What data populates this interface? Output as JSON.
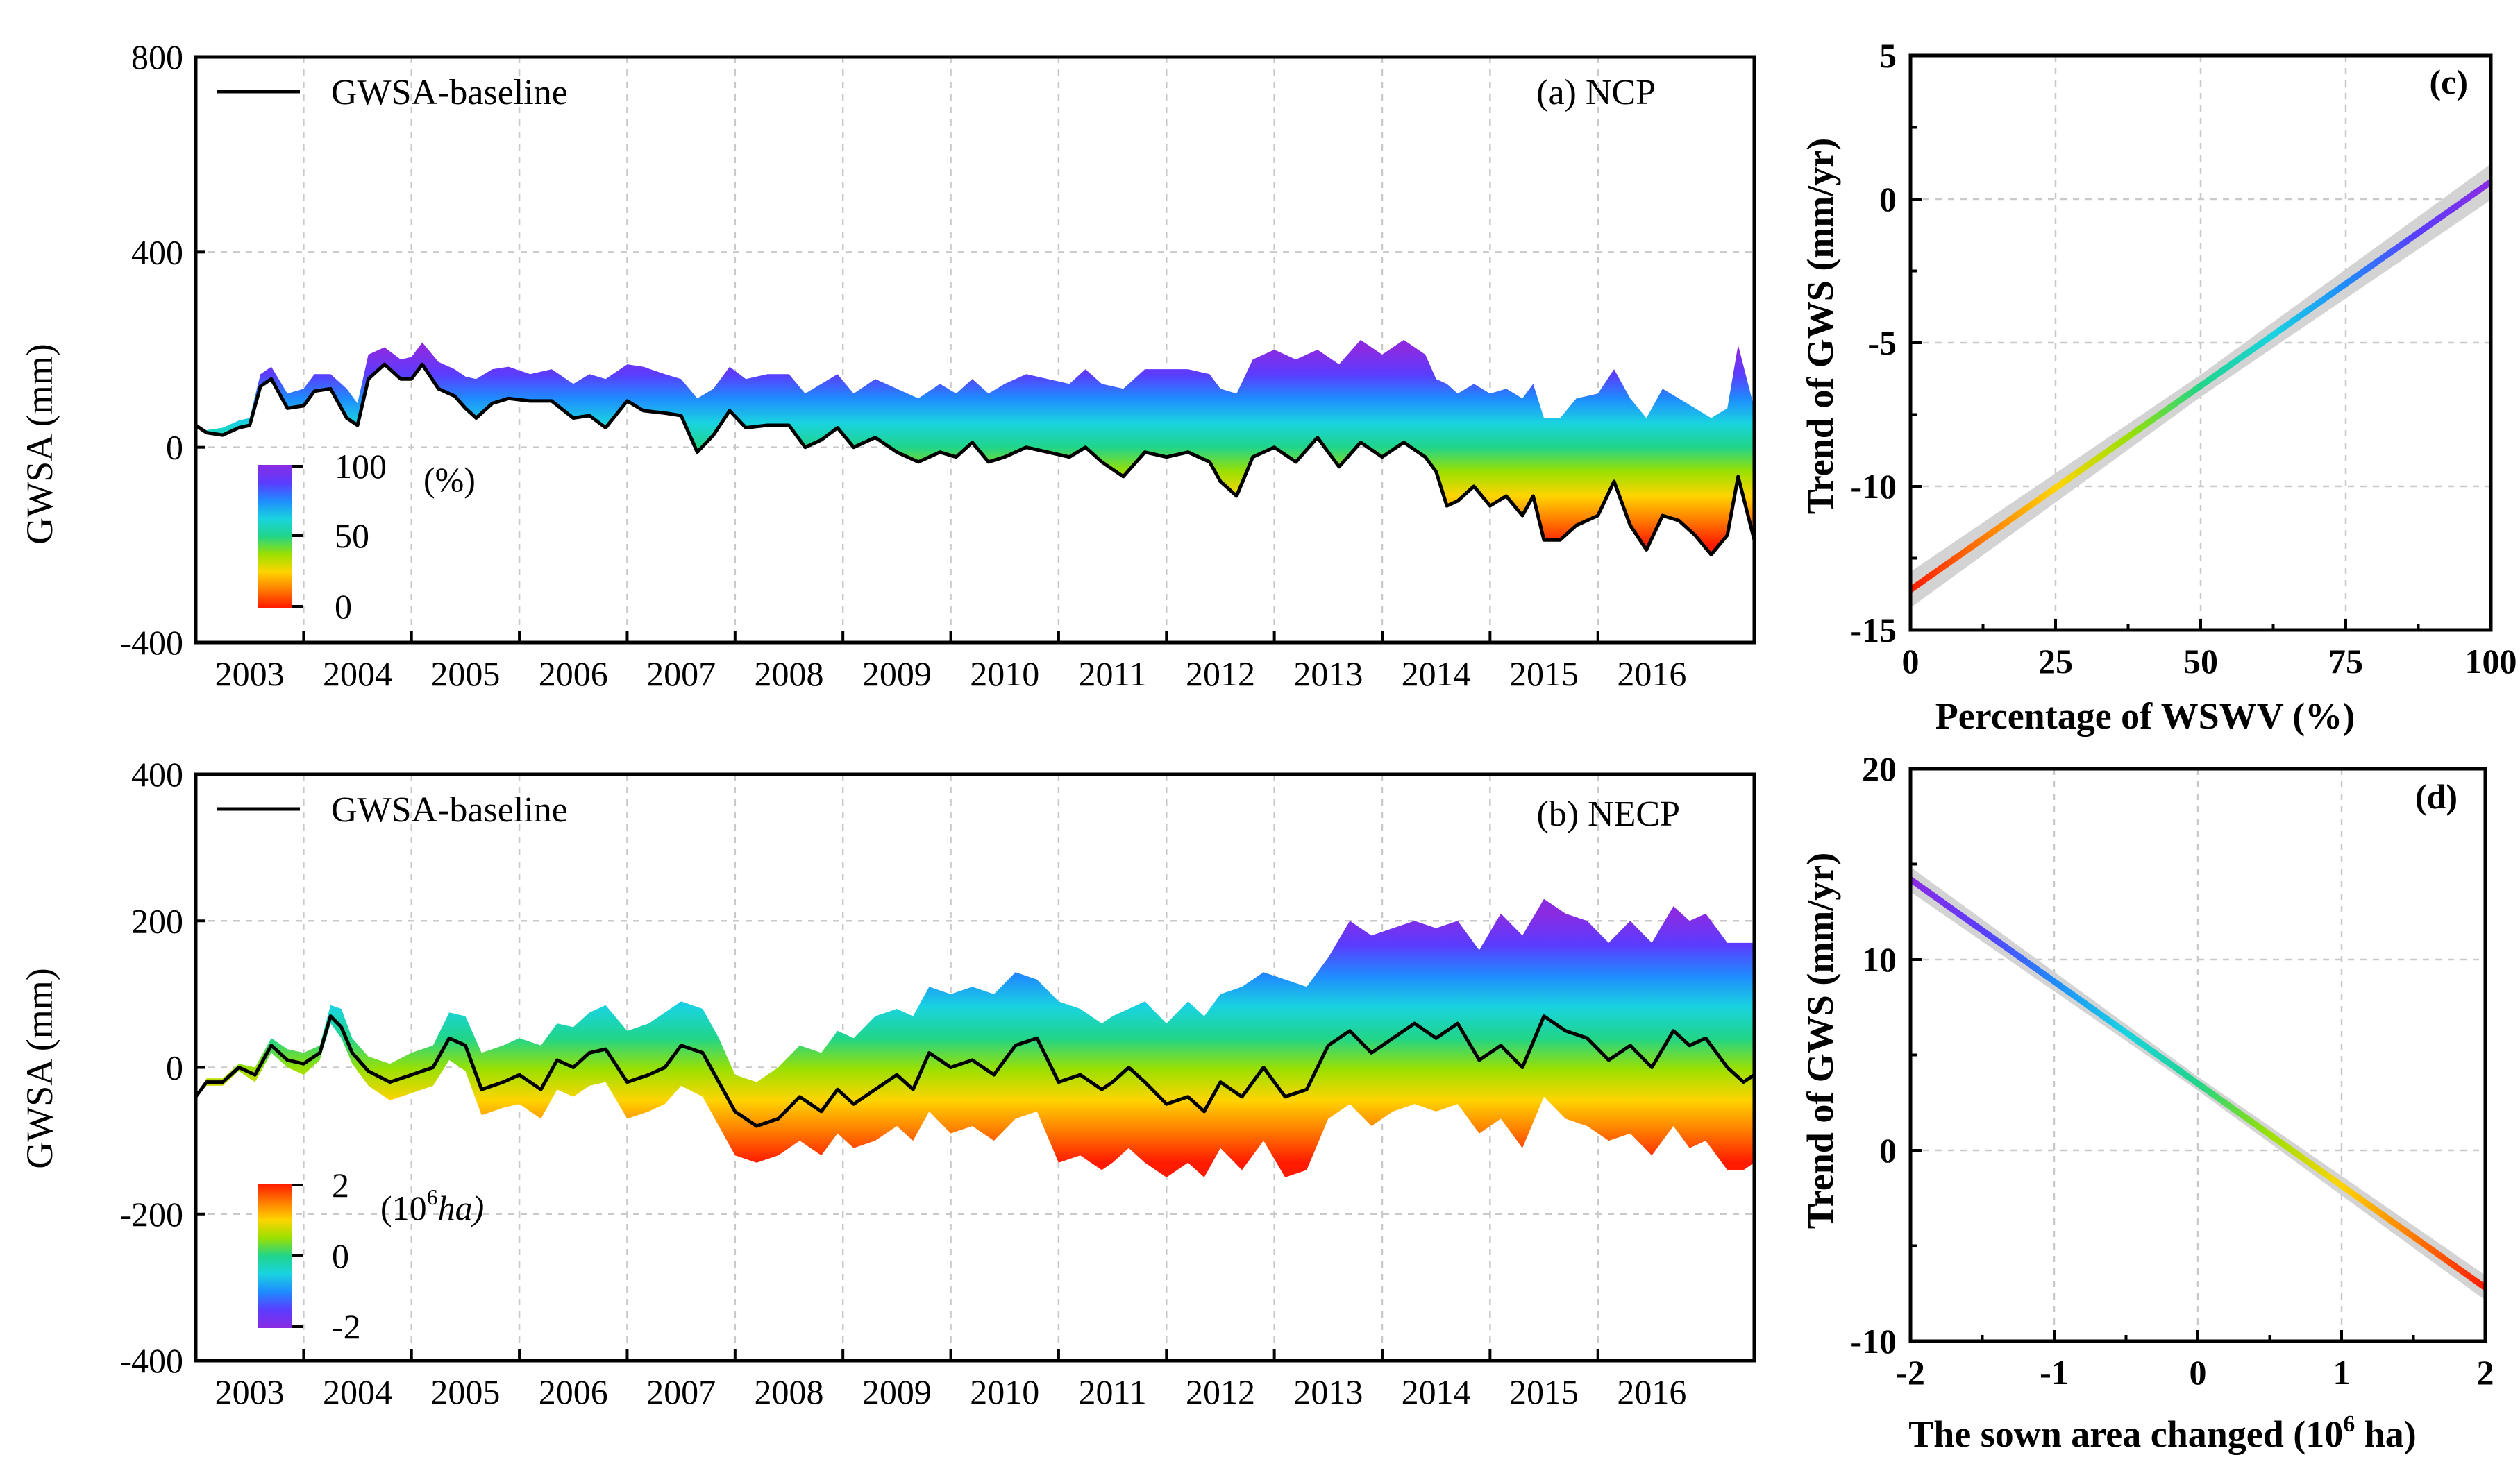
{
  "colors": {
    "baseline": "#000000",
    "band": "#d3d3d3",
    "rainbow": [
      "#ff1a00",
      "#ff7a00",
      "#ffd400",
      "#9be000",
      "#20d58a",
      "#19d3e0",
      "#1f8bff",
      "#5b3cff",
      "#8a2be2"
    ]
  },
  "chart_data": [
    {
      "id": "a",
      "type": "area",
      "panel_label": "(a) NCP",
      "ylabel": "GWSA (mm)",
      "xlabel": "",
      "yticks": [
        "800",
        "400",
        "0",
        "-400"
      ],
      "ylim": [
        -400,
        800
      ],
      "xlim": [
        2002.5,
        2016.95
      ],
      "x_tick_labels": [
        "2003",
        "2004",
        "2005",
        "2006",
        "2007",
        "2008",
        "2009",
        "2010",
        "2011",
        "2012",
        "2013",
        "2014",
        "2015",
        "2016"
      ],
      "legend": {
        "line_label": "GWSA-baseline",
        "placement": "top-left"
      },
      "colorbar": {
        "labels": [
          "100",
          "50",
          "0"
        ],
        "unit": "(%)",
        "direction": "bottom red (0) to top violet (100)"
      },
      "grid": true,
      "series": [
        {
          "name": "GWSA-baseline",
          "x": [
            2002.5,
            2002.6,
            2002.75,
            2002.9,
            2003.0,
            2003.1,
            2003.2,
            2003.35,
            2003.5,
            2003.6,
            2003.75,
            2003.9,
            2004.0,
            2004.1,
            2004.25,
            2004.4,
            2004.5,
            2004.6,
            2004.75,
            2004.9,
            2005.0,
            2005.1,
            2005.25,
            2005.4,
            2005.6,
            2005.8,
            2006.0,
            2006.15,
            2006.3,
            2006.5,
            2006.65,
            2006.85,
            2007.0,
            2007.15,
            2007.3,
            2007.45,
            2007.6,
            2007.8,
            2008.0,
            2008.15,
            2008.3,
            2008.45,
            2008.6,
            2008.8,
            2009.0,
            2009.2,
            2009.4,
            2009.55,
            2009.7,
            2009.85,
            2010.0,
            2010.2,
            2010.4,
            2010.6,
            2010.75,
            2010.9,
            2011.1,
            2011.3,
            2011.5,
            2011.7,
            2011.9,
            2012.0,
            2012.15,
            2012.3,
            2012.5,
            2012.7,
            2012.9,
            2013.1,
            2013.3,
            2013.5,
            2013.7,
            2013.9,
            2014.0,
            2014.1,
            2014.2,
            2014.35,
            2014.5,
            2014.65,
            2014.8,
            2014.9,
            2015.0,
            2015.15,
            2015.3,
            2015.5,
            2015.65,
            2015.8,
            2015.95,
            2016.1,
            2016.25,
            2016.4,
            2016.55,
            2016.7,
            2016.8,
            2016.95
          ],
          "y": [
            45,
            30,
            25,
            40,
            45,
            125,
            140,
            80,
            85,
            115,
            120,
            60,
            45,
            140,
            170,
            140,
            140,
            170,
            120,
            105,
            80,
            60,
            90,
            100,
            95,
            95,
            60,
            65,
            40,
            95,
            75,
            70,
            65,
            -10,
            25,
            75,
            40,
            45,
            45,
            0,
            15,
            40,
            0,
            20,
            -10,
            -30,
            -10,
            -20,
            10,
            -30,
            -20,
            0,
            -10,
            -20,
            0,
            -30,
            -60,
            -10,
            -20,
            -10,
            -30,
            -70,
            -100,
            -20,
            0,
            -30,
            20,
            -40,
            10,
            -20,
            10,
            -20,
            -50,
            -120,
            -110,
            -80,
            -120,
            -100,
            -140,
            -100,
            -190,
            -190,
            -160,
            -140,
            -70,
            -160,
            -210,
            -140,
            -150,
            -180,
            -220,
            -180,
            -60,
            -190
          ]
        }
      ],
      "band_upper": {
        "x": [
          2002.5,
          2002.6,
          2002.75,
          2002.9,
          2003.0,
          2003.1,
          2003.2,
          2003.35,
          2003.5,
          2003.6,
          2003.75,
          2003.9,
          2004.0,
          2004.1,
          2004.25,
          2004.4,
          2004.5,
          2004.6,
          2004.75,
          2004.9,
          2005.0,
          2005.1,
          2005.25,
          2005.4,
          2005.6,
          2005.8,
          2006.0,
          2006.15,
          2006.3,
          2006.5,
          2006.65,
          2006.85,
          2007.0,
          2007.15,
          2007.3,
          2007.45,
          2007.6,
          2007.8,
          2008.0,
          2008.15,
          2008.3,
          2008.45,
          2008.6,
          2008.8,
          2009.0,
          2009.2,
          2009.4,
          2009.55,
          2009.7,
          2009.85,
          2010.0,
          2010.2,
          2010.4,
          2010.6,
          2010.75,
          2010.9,
          2011.1,
          2011.3,
          2011.5,
          2011.7,
          2011.9,
          2012.0,
          2012.15,
          2012.3,
          2012.5,
          2012.7,
          2012.9,
          2013.1,
          2013.3,
          2013.5,
          2013.7,
          2013.9,
          2014.0,
          2014.1,
          2014.2,
          2014.35,
          2014.5,
          2014.65,
          2014.8,
          2014.9,
          2015.0,
          2015.15,
          2015.3,
          2015.5,
          2015.65,
          2015.8,
          2015.95,
          2016.1,
          2016.25,
          2016.4,
          2016.55,
          2016.7,
          2016.8,
          2016.95
        ],
        "y": [
          45,
          35,
          40,
          55,
          60,
          150,
          165,
          110,
          120,
          150,
          150,
          120,
          90,
          190,
          205,
          180,
          185,
          215,
          175,
          160,
          145,
          140,
          160,
          165,
          150,
          160,
          130,
          150,
          140,
          170,
          165,
          150,
          140,
          100,
          120,
          165,
          140,
          150,
          150,
          110,
          130,
          150,
          110,
          140,
          120,
          100,
          130,
          110,
          140,
          110,
          130,
          150,
          140,
          130,
          160,
          130,
          120,
          160,
          160,
          160,
          150,
          120,
          110,
          180,
          200,
          180,
          200,
          170,
          220,
          190,
          220,
          190,
          140,
          130,
          110,
          130,
          110,
          120,
          100,
          130,
          60,
          60,
          100,
          110,
          160,
          100,
          60,
          120,
          100,
          80,
          60,
          80,
          210,
          80
        ]
      }
    },
    {
      "id": "b",
      "type": "area",
      "panel_label": "(b) NECP",
      "ylabel": "GWSA (mm)",
      "xlabel": "",
      "yticks": [
        "400",
        "200",
        "0",
        "-200",
        "-400"
      ],
      "ylim": [
        -400,
        400
      ],
      "xlim": [
        2002.5,
        2016.95
      ],
      "x_tick_labels": [
        "2003",
        "2004",
        "2005",
        "2006",
        "2007",
        "2008",
        "2009",
        "2010",
        "2011",
        "2012",
        "2013",
        "2014",
        "2015",
        "2016"
      ],
      "legend": {
        "line_label": "GWSA-baseline",
        "placement": "top-left"
      },
      "colorbar": {
        "labels": [
          "2",
          "0",
          "-2"
        ],
        "unit_base": "(10",
        "unit_sup": "6",
        "unit_rest": "ha)",
        "direction": "top red (2) to bottom violet (-2)"
      },
      "grid": true,
      "series": [
        {
          "name": "GWSA-baseline",
          "x": [
            2002.5,
            2002.6,
            2002.75,
            2002.9,
            2003.05,
            2003.2,
            2003.35,
            2003.5,
            2003.65,
            2003.75,
            2003.85,
            2003.95,
            2004.1,
            2004.3,
            2004.5,
            2004.7,
            2004.85,
            2005.0,
            2005.15,
            2005.35,
            2005.5,
            2005.7,
            2005.85,
            2006.0,
            2006.15,
            2006.3,
            2006.5,
            2006.7,
            2006.85,
            2007.0,
            2007.2,
            2007.35,
            2007.5,
            2007.7,
            2007.9,
            2008.1,
            2008.3,
            2008.45,
            2008.6,
            2008.8,
            2009.0,
            2009.15,
            2009.3,
            2009.5,
            2009.7,
            2009.9,
            2010.1,
            2010.3,
            2010.5,
            2010.7,
            2010.9,
            2011.0,
            2011.15,
            2011.3,
            2011.5,
            2011.7,
            2011.85,
            2012.0,
            2012.2,
            2012.4,
            2012.6,
            2012.8,
            2013.0,
            2013.2,
            2013.4,
            2013.6,
            2013.8,
            2014.0,
            2014.2,
            2014.4,
            2014.6,
            2014.8,
            2015.0,
            2015.2,
            2015.4,
            2015.6,
            2015.8,
            2016.0,
            2016.2,
            2016.35,
            2016.5,
            2016.7,
            2016.85,
            2016.95
          ],
          "y": [
            -40,
            -20,
            -20,
            0,
            -10,
            30,
            10,
            5,
            20,
            70,
            55,
            20,
            -5,
            -20,
            -10,
            0,
            40,
            30,
            -30,
            -20,
            -10,
            -30,
            10,
            0,
            20,
            25,
            -20,
            -10,
            0,
            30,
            20,
            -20,
            -60,
            -80,
            -70,
            -40,
            -60,
            -30,
            -50,
            -30,
            -10,
            -30,
            20,
            0,
            10,
            -10,
            30,
            40,
            -20,
            -10,
            -30,
            -20,
            0,
            -20,
            -50,
            -40,
            -60,
            -20,
            -40,
            0,
            -40,
            -30,
            30,
            50,
            20,
            40,
            60,
            40,
            60,
            10,
            30,
            0,
            70,
            50,
            40,
            10,
            30,
            0,
            50,
            30,
            40,
            0,
            -20,
            -10
          ]
        }
      ],
      "band_upper": {
        "x": [
          2002.5,
          2002.6,
          2002.75,
          2002.9,
          2003.05,
          2003.2,
          2003.35,
          2003.5,
          2003.65,
          2003.75,
          2003.85,
          2003.95,
          2004.1,
          2004.3,
          2004.5,
          2004.7,
          2004.85,
          2005.0,
          2005.15,
          2005.35,
          2005.5,
          2005.7,
          2005.85,
          2006.0,
          2006.15,
          2006.3,
          2006.5,
          2006.7,
          2006.85,
          2007.0,
          2007.2,
          2007.35,
          2007.5,
          2007.7,
          2007.9,
          2008.1,
          2008.3,
          2008.45,
          2008.6,
          2008.8,
          2009.0,
          2009.15,
          2009.3,
          2009.5,
          2009.7,
          2009.9,
          2010.1,
          2010.3,
          2010.5,
          2010.7,
          2010.9,
          2011.0,
          2011.15,
          2011.3,
          2011.5,
          2011.7,
          2011.85,
          2012.0,
          2012.2,
          2012.4,
          2012.6,
          2012.8,
          2013.0,
          2013.2,
          2013.4,
          2013.6,
          2013.8,
          2014.0,
          2014.2,
          2014.4,
          2014.6,
          2014.8,
          2015.0,
          2015.2,
          2015.4,
          2015.6,
          2015.8,
          2016.0,
          2016.2,
          2016.35,
          2016.5,
          2016.7,
          2016.85,
          2016.95
        ],
        "y": [
          -40,
          -15,
          -15,
          5,
          0,
          40,
          25,
          20,
          30,
          85,
          80,
          40,
          15,
          5,
          20,
          30,
          75,
          70,
          20,
          30,
          40,
          30,
          60,
          55,
          75,
          85,
          50,
          60,
          75,
          90,
          80,
          40,
          -10,
          -20,
          0,
          30,
          20,
          50,
          40,
          70,
          80,
          70,
          110,
          100,
          110,
          100,
          130,
          120,
          90,
          80,
          60,
          70,
          80,
          90,
          60,
          90,
          70,
          100,
          110,
          130,
          120,
          110,
          150,
          200,
          180,
          190,
          200,
          190,
          200,
          160,
          210,
          180,
          230,
          210,
          200,
          170,
          200,
          170,
          220,
          200,
          210,
          170,
          170,
          170
        ]
      },
      "band_lower": {
        "x": [
          2002.5,
          2002.6,
          2002.75,
          2002.9,
          2003.05,
          2003.2,
          2003.35,
          2003.5,
          2003.65,
          2003.75,
          2003.85,
          2003.95,
          2004.1,
          2004.3,
          2004.5,
          2004.7,
          2004.85,
          2005.0,
          2005.15,
          2005.35,
          2005.5,
          2005.7,
          2005.85,
          2006.0,
          2006.15,
          2006.3,
          2006.5,
          2006.7,
          2006.85,
          2007.0,
          2007.2,
          2007.35,
          2007.5,
          2007.7,
          2007.9,
          2008.1,
          2008.3,
          2008.45,
          2008.6,
          2008.8,
          2009.0,
          2009.15,
          2009.3,
          2009.5,
          2009.7,
          2009.9,
          2010.1,
          2010.3,
          2010.5,
          2010.7,
          2010.9,
          2011.0,
          2011.15,
          2011.3,
          2011.5,
          2011.7,
          2011.85,
          2012.0,
          2012.2,
          2012.4,
          2012.6,
          2012.8,
          2013.0,
          2013.2,
          2013.4,
          2013.6,
          2013.8,
          2014.0,
          2014.2,
          2014.4,
          2014.6,
          2014.8,
          2015.0,
          2015.2,
          2015.4,
          2015.6,
          2015.8,
          2016.0,
          2016.2,
          2016.35,
          2016.5,
          2016.7,
          2016.85,
          2016.95
        ],
        "y": [
          -40,
          -25,
          -25,
          -5,
          -20,
          20,
          0,
          -10,
          10,
          60,
          40,
          5,
          -25,
          -45,
          -35,
          -25,
          10,
          -5,
          -65,
          -55,
          -50,
          -70,
          -30,
          -40,
          -25,
          -20,
          -70,
          -60,
          -50,
          -25,
          -40,
          -80,
          -120,
          -130,
          -120,
          -100,
          -120,
          -90,
          -110,
          -100,
          -80,
          -100,
          -60,
          -90,
          -80,
          -100,
          -70,
          -60,
          -130,
          -120,
          -140,
          -130,
          -110,
          -130,
          -150,
          -130,
          -150,
          -110,
          -140,
          -100,
          -150,
          -140,
          -70,
          -50,
          -80,
          -60,
          -50,
          -60,
          -50,
          -90,
          -70,
          -110,
          -40,
          -70,
          -80,
          -100,
          -90,
          -120,
          -80,
          -110,
          -100,
          -140,
          -140,
          -130
        ]
      }
    },
    {
      "id": "c",
      "type": "line",
      "panel_label": "(c)",
      "xlabel": "Percentage of WSWV (%)",
      "ylabel": "Trend of GWS (mm/yr)",
      "xlim": [
        0,
        100
      ],
      "ylim": [
        -15,
        5
      ],
      "x_tick_labels": [
        "0",
        "25",
        "50",
        "75",
        "100"
      ],
      "yticks": [
        "5",
        "0",
        "-5",
        "-10",
        "-15"
      ],
      "grid": true,
      "colored_by": "x (red at 0 to violet at 100)",
      "confidence_band": true,
      "series": [
        {
          "x": [
            0,
            100
          ],
          "y": [
            -13.6,
            0.6
          ]
        }
      ]
    },
    {
      "id": "d",
      "type": "line",
      "panel_label": "(d)",
      "xlabel": "The sown area changed (10",
      "xlabel_sup": "6",
      "xlabel_rest": " ha)",
      "ylabel": "Trend of GWS (mm/yr)",
      "xlim": [
        -2,
        2
      ],
      "ylim": [
        -10,
        20
      ],
      "x_tick_labels": [
        "-2",
        "-1",
        "0",
        "1",
        "2"
      ],
      "yticks": [
        "20",
        "10",
        "0",
        "-10"
      ],
      "grid": true,
      "colored_by": "x (violet at -2 to red at 2)",
      "confidence_band": true,
      "series": [
        {
          "x": [
            -2,
            2
          ],
          "y": [
            14.2,
            -7.2
          ]
        }
      ]
    }
  ]
}
